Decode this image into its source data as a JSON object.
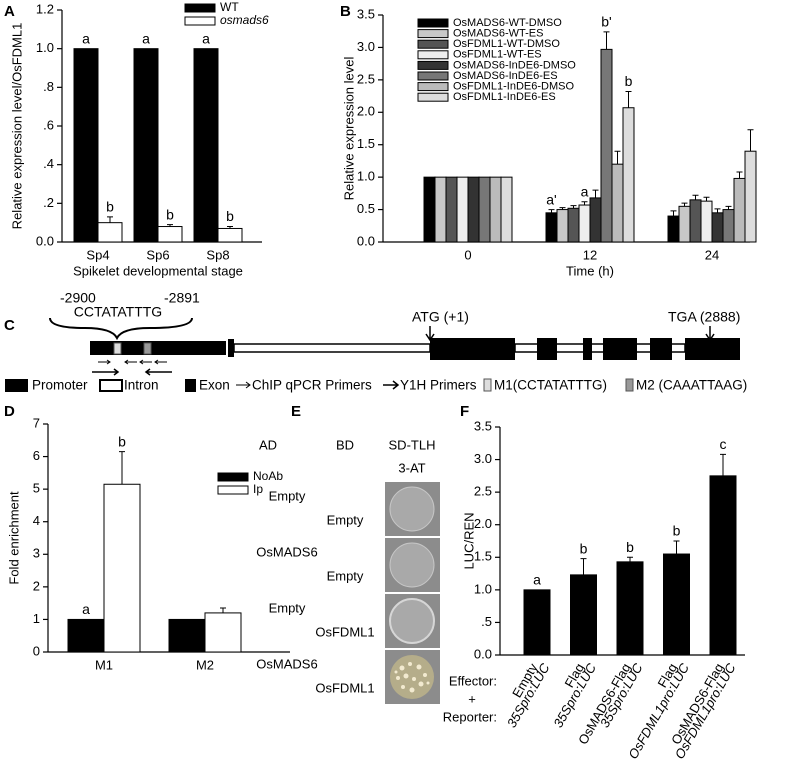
{
  "chart_data": [
    {
      "panel": "A",
      "type": "bar",
      "y_label": "Relative expression level/OsFDML1",
      "x_label": "Spikelet developmental  stage",
      "categories": [
        "Sp4",
        "Sp6",
        "Sp8"
      ],
      "series": [
        {
          "name": "WT",
          "color": "#000000",
          "values": [
            1,
            1,
            1
          ],
          "letters": [
            "a",
            "a",
            "a"
          ]
        },
        {
          "name": "osmads6",
          "color": "#ffffff",
          "values": [
            0.1,
            0.08,
            0.07
          ],
          "errors": [
            0.03,
            0.01,
            0.01
          ],
          "letters": [
            "b",
            "b",
            "b"
          ]
        }
      ],
      "ylim": [
        0,
        1.2
      ],
      "yticks": [
        {
          "value": 0,
          "label": "0.0"
        },
        {
          "value": 0.2,
          "label": ".2"
        },
        {
          "value": 0.4,
          "label": ".4"
        },
        {
          "value": 0.6,
          "label": ".6"
        },
        {
          "value": 0.8,
          "label": ".8"
        },
        {
          "value": 1,
          "label": "1.0"
        },
        {
          "value": 1.2,
          "label": "1.2"
        }
      ]
    },
    {
      "panel": "B",
      "type": "bar",
      "y_label": "Relative expression level",
      "x_label": "Time (h)",
      "categories": [
        "0",
        "12",
        "24"
      ],
      "series": [
        {
          "name": "OsMADS6-WT-DMSO",
          "color": "#000000",
          "values": [
            1,
            0.45,
            0.4
          ],
          "errors": [
            null,
            0.05,
            0.08
          ],
          "letters": [
            null,
            "a'",
            null
          ]
        },
        {
          "name": "OsMADS6-WT-ES",
          "color": "#c8c8c8",
          "values": [
            1,
            0.5,
            0.55
          ],
          "errors": [
            null,
            0.03,
            0.05
          ],
          "letters": [
            null,
            null,
            null
          ]
        },
        {
          "name": "OsFDML1-WT-DMSO",
          "color": "#555555",
          "values": [
            1,
            0.52,
            0.65
          ],
          "errors": [
            null,
            0.04,
            0.07
          ],
          "letters": [
            null,
            null,
            null
          ]
        },
        {
          "name": "OsFDML1-WT-ES",
          "color": "#eeeeee",
          "values": [
            1,
            0.57,
            0.63
          ],
          "errors": [
            null,
            0.05,
            0.06
          ],
          "letters": [
            null,
            "a",
            null
          ]
        },
        {
          "name": "OsMADS6-InDE6-DMSO",
          "color": "#333333",
          "values": [
            1,
            0.68,
            0.45
          ],
          "errors": [
            null,
            0.12,
            0.06
          ],
          "letters": [
            null,
            null,
            null
          ]
        },
        {
          "name": "OsMADS6-InDE6-ES",
          "color": "#777777",
          "values": [
            1,
            2.97,
            0.5
          ],
          "errors": [
            null,
            0.27,
            0.05
          ],
          "letters": [
            null,
            "b'",
            null
          ]
        },
        {
          "name": "OsFDML1-InDE6-DMSO",
          "color": "#bbbbbb",
          "values": [
            1,
            1.2,
            0.98
          ],
          "errors": [
            null,
            0.2,
            0.1
          ],
          "letters": [
            null,
            null,
            null
          ]
        },
        {
          "name": "OsFDML1-InDE6-ES",
          "color": "#dddddd",
          "values": [
            1,
            2.07,
            1.4
          ],
          "errors": [
            null,
            0.25,
            0.33
          ],
          "letters": [
            null,
            "b",
            null
          ]
        }
      ],
      "ylim": [
        0,
        3.5
      ],
      "yticks": [
        {
          "value": 0,
          "label": "0.0"
        },
        0.5,
        {
          "value": 1,
          "label": "1.0"
        },
        1.5,
        {
          "value": 2,
          "label": "2.0"
        },
        2.5,
        {
          "value": 3,
          "label": "3.0"
        },
        3.5
      ]
    },
    {
      "panel": "D",
      "type": "bar",
      "y_label": "Fold enrichment",
      "categories": [
        "M1",
        "M2"
      ],
      "series": [
        {
          "name": "NoAb",
          "color": "#000000",
          "values": [
            1,
            1
          ],
          "letters": [
            "a",
            null
          ]
        },
        {
          "name": "Ip",
          "color": "#ffffff",
          "values": [
            5.15,
            1.2
          ],
          "errors": [
            1.0,
            0.15
          ],
          "letters": [
            "b",
            null
          ]
        }
      ],
      "ylim": [
        0,
        7
      ],
      "yticks": [
        0,
        1,
        2,
        3,
        4,
        5,
        6,
        7
      ]
    },
    {
      "panel": "F",
      "type": "bar",
      "y_label": "LUC/REN",
      "row_labels": [
        "Effector:",
        "+",
        "Reporter:"
      ],
      "categories": [
        "Empty",
        "Flag",
        "OsMADS6-Flag",
        "Flag",
        "OsMADS6-Flag"
      ],
      "reporters": [
        "35Spro:LUC",
        "35Spro:LUC",
        "35Spro:LUC",
        "OsFDML1pro:LUC",
        "OsFDML1pro:LUC"
      ],
      "series": [
        {
          "color": "#000000",
          "values": [
            1,
            1.23,
            1.43,
            1.55,
            2.75
          ],
          "errors": [
            null,
            0.25,
            0.07,
            0.2,
            0.33
          ],
          "letters": [
            "a",
            "b",
            "b",
            "b",
            "c"
          ]
        }
      ],
      "ylim": [
        0,
        3.5
      ],
      "yticks": [
        {
          "value": 0,
          "label": "0.0"
        },
        {
          "value": 0.5,
          "label": ".5"
        },
        {
          "value": 1,
          "label": "1.0"
        },
        1.5,
        {
          "value": 2,
          "label": "2.0"
        },
        2.5,
        {
          "value": 3,
          "label": "3.0"
        },
        3.5
      ]
    }
  ],
  "gene_diagram": {
    "panel": "C",
    "motif_start": "-2900",
    "motif_end": "-2891",
    "motif": "CCTATATTTG",
    "start_codon": "ATG (+1)",
    "stop_codon": "TGA (2888)",
    "legend": [
      "Promoter",
      "Intron",
      "Exon",
      "ChIP qPCR Primers",
      "Y1H Primers",
      "M1(CCTATATTTG)",
      "M2 (CAAATTAAG)"
    ]
  },
  "yeast_assay": {
    "panel": "E",
    "headers": [
      "AD",
      "BD",
      "SD-TLH",
      "3-AT"
    ],
    "rows": [
      [
        "Empty",
        "Empty"
      ],
      [
        "OsMADS6",
        "Empty"
      ],
      [
        "Empty",
        "OsFDML1"
      ],
      [
        "OsMADS6",
        "OsFDML1"
      ]
    ]
  }
}
